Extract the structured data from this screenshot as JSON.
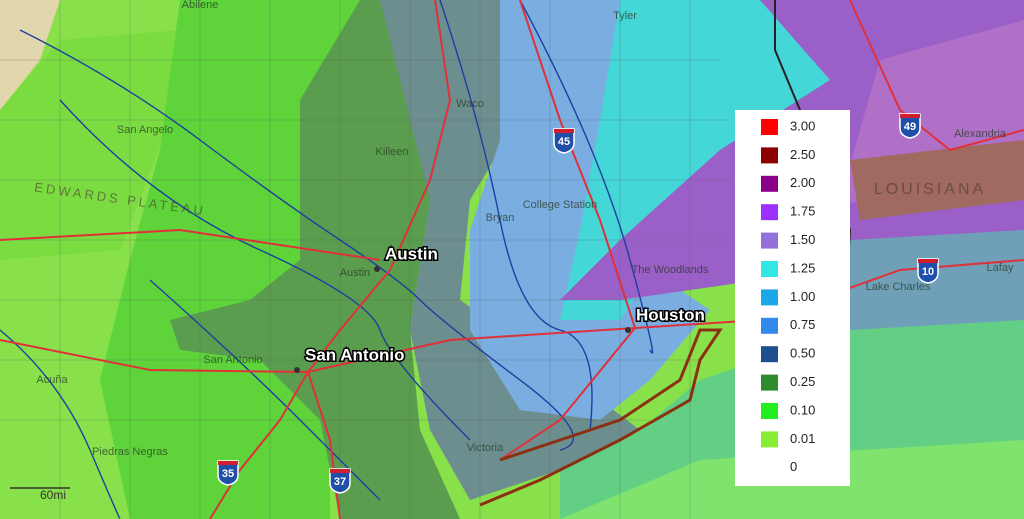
{
  "map": {
    "cities": [
      "Austin",
      "San Antonio",
      "Houston"
    ],
    "places": [
      "Abilene",
      "San Angelo",
      "Waco",
      "Killeen",
      "Bryan",
      "College Station",
      "Austin",
      "San Antonio",
      "The Woodlands",
      "Victoria",
      "Acuña",
      "Piedras Negras",
      "Lake Charles",
      "Alexandria",
      "Tyler",
      "Lafay"
    ],
    "regions": [
      "LOUISIANA",
      "EDWARDS PLATEAU"
    ],
    "highways": [
      "45",
      "35",
      "37",
      "10",
      "49"
    ],
    "scale": "60mi"
  },
  "legend": {
    "items": [
      {
        "label": "3.00",
        "color": "#ff0000"
      },
      {
        "label": "2.50",
        "color": "#8b0000"
      },
      {
        "label": "2.00",
        "color": "#8b008b"
      },
      {
        "label": "1.75",
        "color": "#9b30ff"
      },
      {
        "label": "1.50",
        "color": "#9370db"
      },
      {
        "label": "1.25",
        "color": "#33e6e6"
      },
      {
        "label": "1.00",
        "color": "#1aa8e8"
      },
      {
        "label": "0.75",
        "color": "#3388ee"
      },
      {
        "label": "0.50",
        "color": "#1f4e8c"
      },
      {
        "label": "0.25",
        "color": "#2e8b2e"
      },
      {
        "label": "0.10",
        "color": "#22ee22"
      },
      {
        "label": "0.01",
        "color": "#88ee33"
      },
      {
        "label": "0",
        "color": "#ffffff"
      }
    ]
  }
}
